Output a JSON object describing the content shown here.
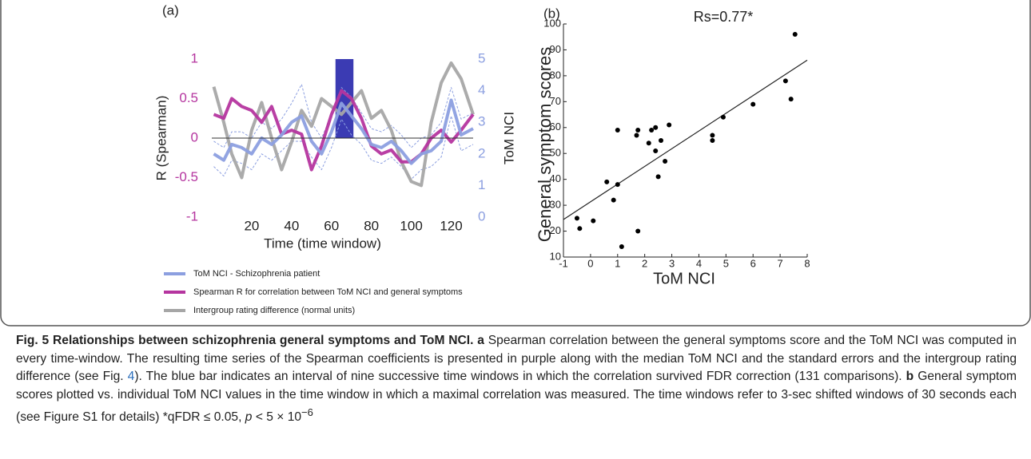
{
  "chart_data": [
    {
      "type": "line",
      "panel_label": "(a)",
      "xlabel": "Time (time window)",
      "ylabel": "R (Spearman)",
      "y2label": "ToM NCI",
      "x": [
        1,
        6,
        10,
        15,
        20,
        25,
        30,
        35,
        40,
        45,
        50,
        55,
        60,
        65,
        70,
        75,
        80,
        85,
        90,
        95,
        100,
        105,
        110,
        115,
        120,
        125,
        131
      ],
      "xlim": [
        0,
        131
      ],
      "xticks": [
        20,
        40,
        60,
        80,
        100,
        120
      ],
      "ylim": [
        -1,
        1
      ],
      "yticks": [
        -1,
        -0.5,
        0,
        0.5,
        1
      ],
      "ytick_color": "#b5359f",
      "y2lim": [
        0,
        5
      ],
      "y2ticks": [
        0,
        1,
        2,
        3,
        4,
        5
      ],
      "y2tick_color": "#8c9fe0",
      "reference_line": 0,
      "highlight": {
        "x": [
          62,
          71
        ],
        "y": [
          0,
          1
        ],
        "color": "#3b3bb3"
      },
      "series": [
        {
          "name": "ToM NCI - Schizophrenia patient",
          "color": "#8c9fe0",
          "axis": "y2",
          "values": [
            2.0,
            1.8,
            2.3,
            2.2,
            2.0,
            2.5,
            2.3,
            2.6,
            3.0,
            3.2,
            2.4,
            2.0,
            2.7,
            3.6,
            3.2,
            2.8,
            2.3,
            2.2,
            2.4,
            2.1,
            1.7,
            2.0,
            2.1,
            2.4,
            3.7,
            2.6,
            2.8
          ]
        },
        {
          "name": "Spearman R for correlation between ToM NCI and general symptoms",
          "color": "#b5359f",
          "values": [
            0.3,
            0.25,
            0.5,
            0.4,
            0.35,
            0.2,
            0.4,
            0.05,
            0.1,
            0.05,
            -0.4,
            -0.1,
            0.3,
            0.6,
            0.5,
            0.25,
            -0.1,
            -0.2,
            -0.15,
            -0.3,
            -0.3,
            -0.2,
            0.0,
            0.1,
            -0.05,
            0.1,
            0.3
          ]
        },
        {
          "name": "Intergroup rating difference (normal units)",
          "color": "#a6a6a6",
          "values": [
            0.65,
            0.2,
            -0.2,
            -0.5,
            0.1,
            0.45,
            0.0,
            -0.4,
            -0.05,
            0.35,
            0.15,
            0.5,
            0.4,
            0.3,
            0.45,
            0.6,
            0.25,
            0.35,
            0.1,
            -0.3,
            -0.55,
            -0.6,
            0.2,
            0.7,
            0.95,
            0.75,
            0.3
          ]
        },
        {
          "color": "#8c9fe0",
          "axis": "y2",
          "dashed": true,
          "values": [
            2.4,
            2.2,
            2.7,
            2.7,
            2.5,
            3.0,
            2.8,
            3.1,
            3.6,
            4.2,
            3.0,
            2.5,
            3.2,
            4.1,
            3.8,
            3.3,
            2.8,
            2.7,
            2.9,
            2.6,
            2.2,
            2.5,
            2.6,
            3.0,
            4.1,
            3.1,
            3.3
          ]
        },
        {
          "color": "#8c9fe0",
          "axis": "y2",
          "dashed": true,
          "values": [
            1.6,
            1.3,
            1.8,
            1.7,
            1.5,
            2.0,
            1.8,
            2.1,
            2.4,
            2.4,
            1.9,
            1.5,
            2.2,
            3.1,
            2.6,
            2.3,
            1.8,
            1.7,
            1.9,
            1.6,
            1.2,
            1.5,
            1.6,
            1.9,
            3.2,
            2.1,
            2.3
          ]
        }
      ]
    },
    {
      "type": "scatter",
      "panel_label": "(b)",
      "title": "Rs=0.77*",
      "xlabel": "ToM NCI",
      "ylabel": "General symptom scores",
      "xlim": [
        -1,
        8
      ],
      "xticks": [
        -1,
        0,
        1,
        2,
        3,
        4,
        5,
        6,
        7,
        8
      ],
      "ylim": [
        10,
        100
      ],
      "yticks": [
        10,
        20,
        30,
        40,
        50,
        60,
        70,
        80,
        90,
        100
      ],
      "color": "#000000",
      "x": [
        -0.5,
        -0.4,
        0.1,
        0.6,
        0.85,
        1.0,
        1.0,
        1.15,
        1.7,
        1.75,
        1.75,
        2.15,
        2.25,
        2.4,
        2.4,
        2.5,
        2.6,
        2.75,
        2.9,
        4.5,
        4.5,
        4.9,
        6.0,
        7.2,
        7.4,
        7.55
      ],
      "values": [
        25,
        21,
        24,
        39,
        32,
        38,
        59,
        14,
        57,
        59,
        20,
        54,
        59,
        60,
        51,
        41,
        55,
        47,
        61,
        57,
        55,
        64,
        69,
        78,
        71,
        96
      ],
      "trend": {
        "x": [
          -1,
          8
        ],
        "values": [
          24.5,
          86
        ]
      }
    }
  ],
  "caption": {
    "title": "Fig. 5 Relationships between schizophrenia general symptoms and ToM NCI.",
    "a_label": "a",
    "a_text_1": "Spearman correlation between the general symptoms score and the ToM NCI was computed in every time-window. The resulting time series of the Spearman coefficients is presented in purple along with the median ToM NCI and the standard errors and the intergroup rating difference (see Fig. ",
    "a_ref": "4",
    "a_text_2": "). The blue bar indicates an interval of nine successive time windows in which the correlation survived FDR correction (131 comparisons).",
    "b_label": "b",
    "b_text": "General symptom scores plotted vs. individual ToM NCI values in the time window in which a maximal correlation was measured. The time windows refer to 3-sec shifted windows of 30 seconds each (see Figure S1 for details) *qFDR ≤ 0.05,",
    "p": "p",
    "p_text": "< 5 × 10",
    "exponent": "−6"
  }
}
